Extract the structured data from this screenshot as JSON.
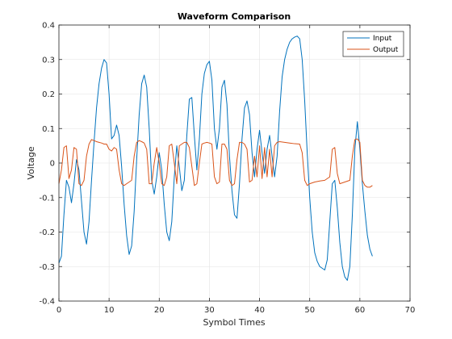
{
  "chart_data": {
    "type": "line",
    "title": "Waveform Comparison",
    "xlabel": "Symbol Times",
    "ylabel": "Voltage",
    "xlim": [
      0,
      70
    ],
    "ylim": [
      -0.4,
      0.4
    ],
    "xticks": [
      0,
      10,
      20,
      30,
      40,
      50,
      60,
      70
    ],
    "yticks": [
      -0.4,
      -0.3,
      -0.2,
      -0.1,
      0,
      0.1,
      0.2,
      0.3,
      0.4
    ],
    "xtick_labels": [
      "0",
      "10",
      "20",
      "30",
      "40",
      "50",
      "60",
      "70"
    ],
    "ytick_labels": [
      "-0.4",
      "-0.3",
      "-0.2",
      "-0.1",
      "0",
      "0.1",
      "0.2",
      "0.3",
      "0.4"
    ],
    "grid": true,
    "legend_position": "top-right",
    "series": [
      {
        "name": "Input",
        "color": "#0072BD",
        "points": [
          [
            0,
            -0.29
          ],
          [
            0.5,
            -0.27
          ],
          [
            1.0,
            -0.15
          ],
          [
            1.5,
            -0.05
          ],
          [
            2.0,
            -0.07
          ],
          [
            2.5,
            -0.115
          ],
          [
            3.0,
            -0.06
          ],
          [
            3.5,
            0.01
          ],
          [
            4.0,
            -0.02
          ],
          [
            4.5,
            -0.11
          ],
          [
            5.0,
            -0.2
          ],
          [
            5.5,
            -0.235
          ],
          [
            6.0,
            -0.17
          ],
          [
            6.5,
            -0.05
          ],
          [
            7.0,
            0.06
          ],
          [
            7.5,
            0.16
          ],
          [
            8.0,
            0.23
          ],
          [
            8.5,
            0.275
          ],
          [
            9.0,
            0.3
          ],
          [
            9.5,
            0.29
          ],
          [
            10.0,
            0.2
          ],
          [
            10.5,
            0.07
          ],
          [
            11.0,
            0.08
          ],
          [
            11.5,
            0.11
          ],
          [
            12.0,
            0.08
          ],
          [
            12.5,
            -0.01
          ],
          [
            13.0,
            -0.12
          ],
          [
            13.5,
            -0.21
          ],
          [
            14.0,
            -0.265
          ],
          [
            14.5,
            -0.24
          ],
          [
            15.0,
            -0.14
          ],
          [
            15.5,
            0.01
          ],
          [
            16.0,
            0.14
          ],
          [
            16.5,
            0.23
          ],
          [
            17.0,
            0.255
          ],
          [
            17.5,
            0.22
          ],
          [
            18.0,
            0.1
          ],
          [
            18.5,
            -0.05
          ],
          [
            19.0,
            -0.09
          ],
          [
            19.5,
            -0.04
          ],
          [
            20.0,
            0.03
          ],
          [
            20.5,
            -0.02
          ],
          [
            21.0,
            -0.12
          ],
          [
            21.5,
            -0.2
          ],
          [
            22.0,
            -0.225
          ],
          [
            22.5,
            -0.17
          ],
          [
            23.0,
            -0.04
          ],
          [
            23.5,
            0.05
          ],
          [
            24.0,
            -0.01
          ],
          [
            24.5,
            -0.08
          ],
          [
            25.0,
            -0.05
          ],
          [
            25.5,
            0.08
          ],
          [
            26.0,
            0.185
          ],
          [
            26.5,
            0.19
          ],
          [
            27.0,
            0.08
          ],
          [
            27.5,
            -0.02
          ],
          [
            28.0,
            0.07
          ],
          [
            28.5,
            0.2
          ],
          [
            29.0,
            0.26
          ],
          [
            29.5,
            0.285
          ],
          [
            30.0,
            0.295
          ],
          [
            30.5,
            0.24
          ],
          [
            31.0,
            0.1
          ],
          [
            31.5,
            0.04
          ],
          [
            32.0,
            0.1
          ],
          [
            32.5,
            0.22
          ],
          [
            33.0,
            0.24
          ],
          [
            33.5,
            0.17
          ],
          [
            34.0,
            0.02
          ],
          [
            34.5,
            -0.08
          ],
          [
            35.0,
            -0.15
          ],
          [
            35.5,
            -0.16
          ],
          [
            36.0,
            -0.06
          ],
          [
            36.5,
            0.07
          ],
          [
            37.0,
            0.16
          ],
          [
            37.5,
            0.18
          ],
          [
            38.0,
            0.14
          ],
          [
            38.5,
            0.03
          ],
          [
            39.0,
            -0.04
          ],
          [
            39.5,
            0.04
          ],
          [
            40.0,
            0.095
          ],
          [
            40.5,
            0.03
          ],
          [
            41.0,
            -0.03
          ],
          [
            41.5,
            0.04
          ],
          [
            42.0,
            0.08
          ],
          [
            42.5,
            0.02
          ],
          [
            43.0,
            -0.04
          ],
          [
            43.5,
            0.02
          ],
          [
            44.0,
            0.15
          ],
          [
            44.5,
            0.25
          ],
          [
            45.0,
            0.3
          ],
          [
            45.5,
            0.33
          ],
          [
            46.0,
            0.35
          ],
          [
            46.5,
            0.36
          ],
          [
            47.0,
            0.365
          ],
          [
            47.5,
            0.368
          ],
          [
            48.0,
            0.36
          ],
          [
            48.5,
            0.3
          ],
          [
            49.0,
            0.18
          ],
          [
            49.5,
            0.03
          ],
          [
            50.0,
            -0.1
          ],
          [
            50.5,
            -0.2
          ],
          [
            51.0,
            -0.26
          ],
          [
            51.5,
            -0.285
          ],
          [
            52.0,
            -0.3
          ],
          [
            52.5,
            -0.305
          ],
          [
            53.0,
            -0.31
          ],
          [
            53.5,
            -0.28
          ],
          [
            54.0,
            -0.17
          ],
          [
            54.5,
            -0.06
          ],
          [
            55.0,
            -0.05
          ],
          [
            55.5,
            -0.13
          ],
          [
            56.0,
            -0.23
          ],
          [
            56.5,
            -0.3
          ],
          [
            57.0,
            -0.33
          ],
          [
            57.5,
            -0.34
          ],
          [
            58.0,
            -0.3
          ],
          [
            58.5,
            -0.15
          ],
          [
            59.0,
            0.04
          ],
          [
            59.5,
            0.12
          ],
          [
            60.0,
            0.04
          ],
          [
            60.5,
            -0.06
          ],
          [
            61.0,
            -0.14
          ],
          [
            61.5,
            -0.21
          ],
          [
            62.0,
            -0.25
          ],
          [
            62.5,
            -0.27
          ]
        ]
      },
      {
        "name": "Output",
        "color": "#D95319",
        "points": [
          [
            0,
            -0.06
          ],
          [
            0.5,
            -0.02
          ],
          [
            1.0,
            0.045
          ],
          [
            1.5,
            0.05
          ],
          [
            2.0,
            -0.045
          ],
          [
            2.5,
            -0.02
          ],
          [
            3.0,
            0.045
          ],
          [
            3.5,
            0.04
          ],
          [
            4.0,
            -0.06
          ],
          [
            4.5,
            -0.065
          ],
          [
            5.0,
            -0.05
          ],
          [
            5.5,
            0.02
          ],
          [
            6.0,
            0.055
          ],
          [
            6.5,
            0.068
          ],
          [
            7.0,
            0.065
          ],
          [
            7.5,
            0.062
          ],
          [
            8.0,
            0.06
          ],
          [
            8.5,
            0.058
          ],
          [
            9.0,
            0.055
          ],
          [
            9.5,
            0.055
          ],
          [
            10.0,
            0.04
          ],
          [
            10.5,
            0.035
          ],
          [
            11.0,
            0.045
          ],
          [
            11.5,
            0.04
          ],
          [
            12.0,
            -0.02
          ],
          [
            12.5,
            -0.06
          ],
          [
            13.0,
            -0.065
          ],
          [
            13.5,
            -0.06
          ],
          [
            14.0,
            -0.055
          ],
          [
            14.5,
            -0.05
          ],
          [
            15.0,
            0.02
          ],
          [
            15.5,
            0.06
          ],
          [
            16.0,
            0.065
          ],
          [
            16.5,
            0.062
          ],
          [
            17.0,
            0.058
          ],
          [
            17.5,
            0.04
          ],
          [
            18.0,
            -0.06
          ],
          [
            18.5,
            -0.06
          ],
          [
            19.0,
            0.0
          ],
          [
            19.5,
            0.045
          ],
          [
            20.0,
            0.0
          ],
          [
            20.5,
            -0.06
          ],
          [
            21.0,
            -0.065
          ],
          [
            21.5,
            -0.04
          ],
          [
            22.0,
            0.05
          ],
          [
            22.5,
            0.055
          ],
          [
            23.0,
            0.0
          ],
          [
            23.5,
            -0.06
          ],
          [
            24.0,
            0.05
          ],
          [
            24.5,
            0.055
          ],
          [
            25.0,
            0.06
          ],
          [
            25.5,
            0.06
          ],
          [
            26.0,
            0.045
          ],
          [
            26.5,
            -0.01
          ],
          [
            27.0,
            -0.065
          ],
          [
            27.5,
            -0.06
          ],
          [
            28.0,
            0.0
          ],
          [
            28.5,
            0.055
          ],
          [
            29.0,
            0.058
          ],
          [
            29.5,
            0.06
          ],
          [
            30.0,
            0.058
          ],
          [
            30.5,
            0.055
          ],
          [
            31.0,
            -0.04
          ],
          [
            31.5,
            -0.06
          ],
          [
            32.0,
            -0.055
          ],
          [
            32.5,
            0.055
          ],
          [
            33.0,
            0.055
          ],
          [
            33.5,
            0.04
          ],
          [
            34.0,
            -0.05
          ],
          [
            34.5,
            -0.065
          ],
          [
            35.0,
            -0.06
          ],
          [
            35.5,
            0.01
          ],
          [
            36.0,
            0.06
          ],
          [
            36.5,
            0.06
          ],
          [
            37.0,
            0.055
          ],
          [
            37.5,
            0.04
          ],
          [
            38.0,
            -0.055
          ],
          [
            38.5,
            -0.05
          ],
          [
            39.0,
            0.02
          ],
          [
            39.5,
            -0.04
          ],
          [
            40.0,
            0.05
          ],
          [
            40.5,
            -0.045
          ],
          [
            41.0,
            0.045
          ],
          [
            41.5,
            -0.04
          ],
          [
            42.0,
            0.04
          ],
          [
            42.5,
            -0.04
          ],
          [
            43.0,
            0.05
          ],
          [
            43.5,
            0.06
          ],
          [
            44.0,
            0.062
          ],
          [
            45.0,
            0.06
          ],
          [
            46.0,
            0.058
          ],
          [
            47.0,
            0.056
          ],
          [
            48.0,
            0.055
          ],
          [
            48.5,
            0.03
          ],
          [
            49.0,
            -0.05
          ],
          [
            49.5,
            -0.065
          ],
          [
            50.0,
            -0.06
          ],
          [
            51.0,
            -0.055
          ],
          [
            52.0,
            -0.052
          ],
          [
            53.0,
            -0.05
          ],
          [
            54.0,
            -0.04
          ],
          [
            54.5,
            0.04
          ],
          [
            55.0,
            0.045
          ],
          [
            55.5,
            -0.03
          ],
          [
            56.0,
            -0.06
          ],
          [
            57.0,
            -0.055
          ],
          [
            58.0,
            -0.05
          ],
          [
            58.5,
            0.02
          ],
          [
            59.0,
            0.068
          ],
          [
            59.5,
            0.07
          ],
          [
            60.0,
            0.06
          ],
          [
            60.5,
            -0.05
          ],
          [
            61.0,
            -0.065
          ],
          [
            61.5,
            -0.07
          ],
          [
            62.0,
            -0.07
          ],
          [
            62.5,
            -0.065
          ]
        ]
      }
    ]
  }
}
